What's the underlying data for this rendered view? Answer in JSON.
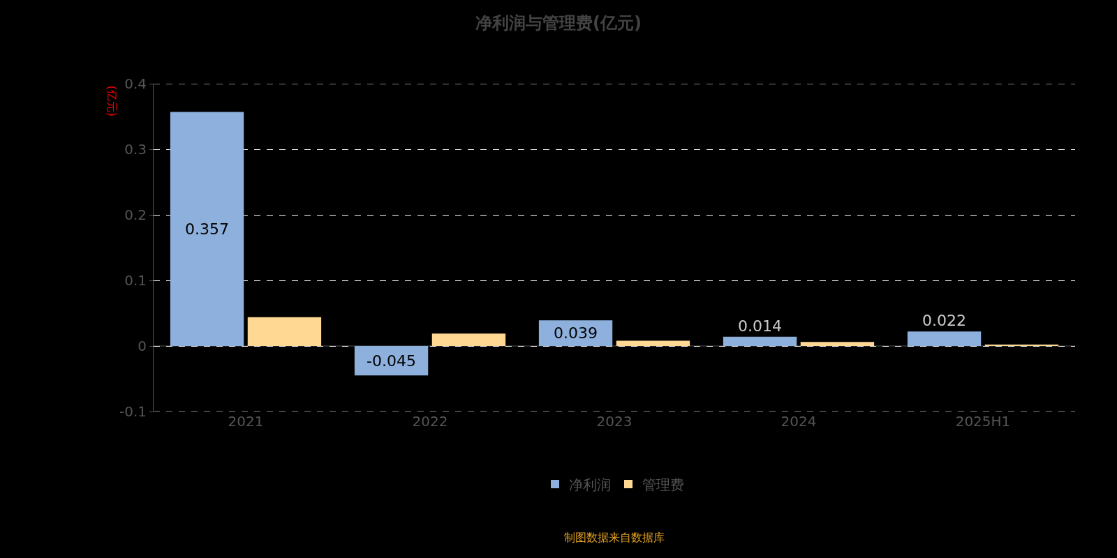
{
  "chart_data": {
    "type": "bar",
    "title": "净利润与管理费(亿元)",
    "ylabel": "(亿元)",
    "categories": [
      "2021",
      "2022",
      "2023",
      "2024",
      "2025H1"
    ],
    "series": [
      {
        "name": "净利润",
        "color": "#8eb0dc",
        "values": [
          0.357,
          -0.045,
          0.039,
          0.014,
          0.022
        ],
        "value_labels": [
          "0.357",
          "-0.045",
          "0.039",
          "0.014",
          "0.022"
        ]
      },
      {
        "name": "管理费",
        "color": "#ffd994",
        "values": [
          0.044,
          0.019,
          0.008,
          0.006,
          0.002
        ]
      }
    ],
    "ylim": [
      -0.1,
      0.4
    ],
    "yticks": [
      -0.1,
      0,
      0.1,
      0.2,
      0.3,
      0.4
    ],
    "grid": "y",
    "legend": "bottom",
    "annotations": [
      "制图数据来自数据库"
    ]
  }
}
